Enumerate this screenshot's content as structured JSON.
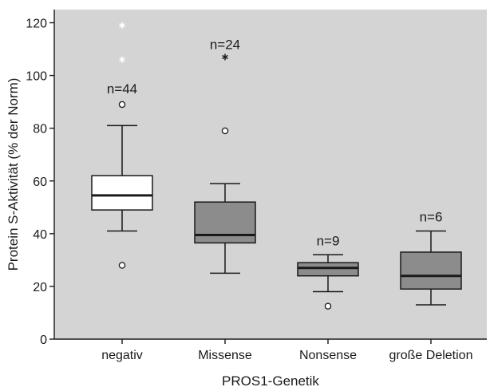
{
  "chart_data": {
    "type": "boxplot",
    "xlabel": "PROS1-Genetik",
    "ylabel": "Protein S-Aktivität (% der Norm)",
    "ylim": [
      0,
      125
    ],
    "yticks": [
      0,
      20,
      40,
      60,
      80,
      100,
      120
    ],
    "grid": false,
    "colors": {
      "plot_background": "#d4d4d4",
      "box_negativ": "#ffffff",
      "box_other": "#8c8c8c",
      "extreme_star_light": "#ffffff",
      "extreme_star_dark": "#1a1a1a"
    },
    "categories": [
      "negativ",
      "Missense",
      "Nonsense",
      "große Deletion"
    ],
    "groups": [
      {
        "category": "negativ",
        "n_label": "n=44",
        "whisker_low": 41,
        "q1": 49,
        "median": 54.5,
        "q3": 62,
        "whisker_high": 81,
        "outliers": [
          28,
          89
        ],
        "extremes": [
          106,
          119
        ],
        "fill": "light",
        "star_color": "light"
      },
      {
        "category": "Missense",
        "n_label": "n=24",
        "whisker_low": 25,
        "q1": 36.5,
        "median": 39.5,
        "q3": 52,
        "whisker_high": 59,
        "outliers": [
          79
        ],
        "extremes": [
          107
        ],
        "fill": "dark",
        "star_color": "dark"
      },
      {
        "category": "Nonsense",
        "n_label": "n=9",
        "whisker_low": 18,
        "q1": 24,
        "median": 27,
        "q3": 29,
        "whisker_high": 32,
        "outliers": [
          12.5
        ],
        "extremes": [],
        "fill": "dark",
        "star_color": "dark"
      },
      {
        "category": "große Deletion",
        "n_label": "n=6",
        "whisker_low": 13,
        "q1": 19,
        "median": 24,
        "q3": 33,
        "whisker_high": 41,
        "outliers": [],
        "extremes": [],
        "fill": "dark",
        "star_color": "dark"
      }
    ]
  }
}
